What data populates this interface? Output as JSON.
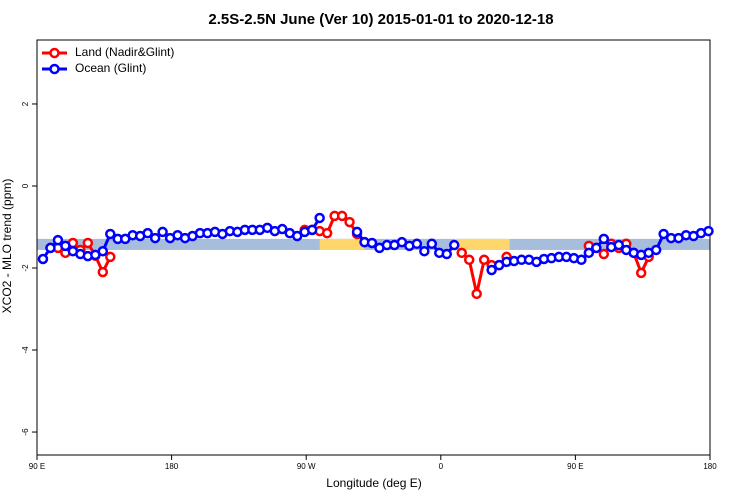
{
  "chart_data": {
    "type": "line",
    "title": "2.5S-2.5N June (Ver 10)   2015-01-01 to 2020-12-18",
    "x_label": "Longitude (deg E)",
    "y_label": "XCO2 - MLO trend (ppm)",
    "xlim": [
      90,
      540
    ],
    "ylim": [
      -6.56,
      3.56
    ],
    "xticks": [
      {
        "value": 90,
        "label": "90 E"
      },
      {
        "value": 180,
        "label": "180"
      },
      {
        "value": 270,
        "label": "90 W"
      },
      {
        "value": 360,
        "label": "0"
      },
      {
        "value": 450,
        "label": "90 E"
      },
      {
        "value": 540,
        "label": "180"
      }
    ],
    "yticks": [
      -6,
      -4,
      -2,
      0,
      2
    ],
    "legend": "top-left",
    "reference_band": {
      "range": [
        -1.56,
        -1.29
      ],
      "color": "#a6bddb"
    },
    "highlight_ranges": {
      "ranges": [
        [
          279,
          309
        ],
        [
          369,
          406
        ]
      ],
      "color": "#fed66b"
    },
    "x": [
      94,
      99,
      104,
      109,
      114,
      119,
      124,
      129,
      134,
      139,
      144,
      149,
      154,
      159,
      164,
      169,
      174,
      179,
      184,
      189,
      194,
      199,
      204,
      209,
      214,
      219,
      224,
      229,
      234,
      239,
      244,
      249,
      254,
      259,
      264,
      269,
      274,
      279,
      284,
      289,
      294,
      299,
      304,
      309,
      314,
      319,
      324,
      329,
      334,
      339,
      344,
      349,
      354,
      359,
      364,
      369,
      374,
      379,
      384,
      389,
      394,
      399,
      404,
      409,
      414,
      419,
      424,
      429,
      434,
      439,
      444,
      449,
      454,
      459,
      464,
      469,
      474,
      479,
      484,
      489,
      494,
      499,
      504,
      509,
      514,
      519,
      524,
      529,
      534,
      539
    ],
    "series": [
      {
        "name": "Land (Nadir&Glint)",
        "color": "#ff0000",
        "values": [
          null,
          -1.51,
          -1.51,
          -1.63,
          -1.39,
          -1.56,
          -1.39,
          -1.7,
          -2.1,
          -1.73,
          null,
          null,
          null,
          null,
          null,
          null,
          null,
          null,
          null,
          null,
          null,
          null,
          null,
          null,
          null,
          null,
          null,
          null,
          null,
          null,
          null,
          null,
          null,
          null,
          null,
          -1.07,
          -1.07,
          -1.1,
          -1.15,
          -0.73,
          -0.73,
          -0.88,
          -1.17,
          -1.37,
          null,
          null,
          null,
          null,
          null,
          null,
          null,
          null,
          null,
          null,
          null,
          null,
          -1.63,
          -1.8,
          -2.63,
          -1.8,
          -1.93,
          -1.93,
          -1.73,
          null,
          null,
          null,
          null,
          null,
          null,
          null,
          null,
          null,
          null,
          -1.46,
          -1.51,
          -1.66,
          -1.41,
          -1.51,
          -1.41,
          -1.63,
          -2.12,
          -1.73,
          null,
          null,
          null,
          null,
          null,
          null,
          null,
          null
        ]
      },
      {
        "name": "Ocean (Glint)",
        "color": "#0000ff",
        "values": [
          -1.78,
          -1.51,
          -1.32,
          -1.46,
          -1.59,
          -1.66,
          -1.71,
          -1.68,
          -1.59,
          -1.17,
          -1.29,
          -1.29,
          -1.2,
          -1.22,
          -1.15,
          -1.27,
          -1.12,
          -1.27,
          -1.2,
          -1.27,
          -1.22,
          -1.15,
          -1.15,
          -1.12,
          -1.17,
          -1.1,
          -1.12,
          -1.07,
          -1.07,
          -1.07,
          -1.02,
          -1.1,
          -1.05,
          -1.15,
          -1.22,
          -1.12,
          -1.07,
          -0.78,
          null,
          null,
          null,
          null,
          -1.12,
          -1.37,
          -1.39,
          -1.51,
          -1.44,
          -1.44,
          -1.37,
          -1.46,
          -1.41,
          -1.59,
          -1.41,
          -1.63,
          -1.66,
          -1.44,
          null,
          null,
          null,
          null,
          -2.05,
          -1.93,
          -1.85,
          -1.83,
          -1.8,
          -1.8,
          -1.85,
          -1.78,
          -1.76,
          -1.73,
          -1.73,
          -1.76,
          -1.8,
          -1.63,
          -1.51,
          -1.29,
          -1.49,
          -1.44,
          -1.56,
          -1.63,
          -1.68,
          -1.63,
          -1.56,
          -1.17,
          -1.27,
          -1.27,
          -1.2,
          -1.22,
          -1.15,
          -1.1
        ]
      }
    ]
  }
}
